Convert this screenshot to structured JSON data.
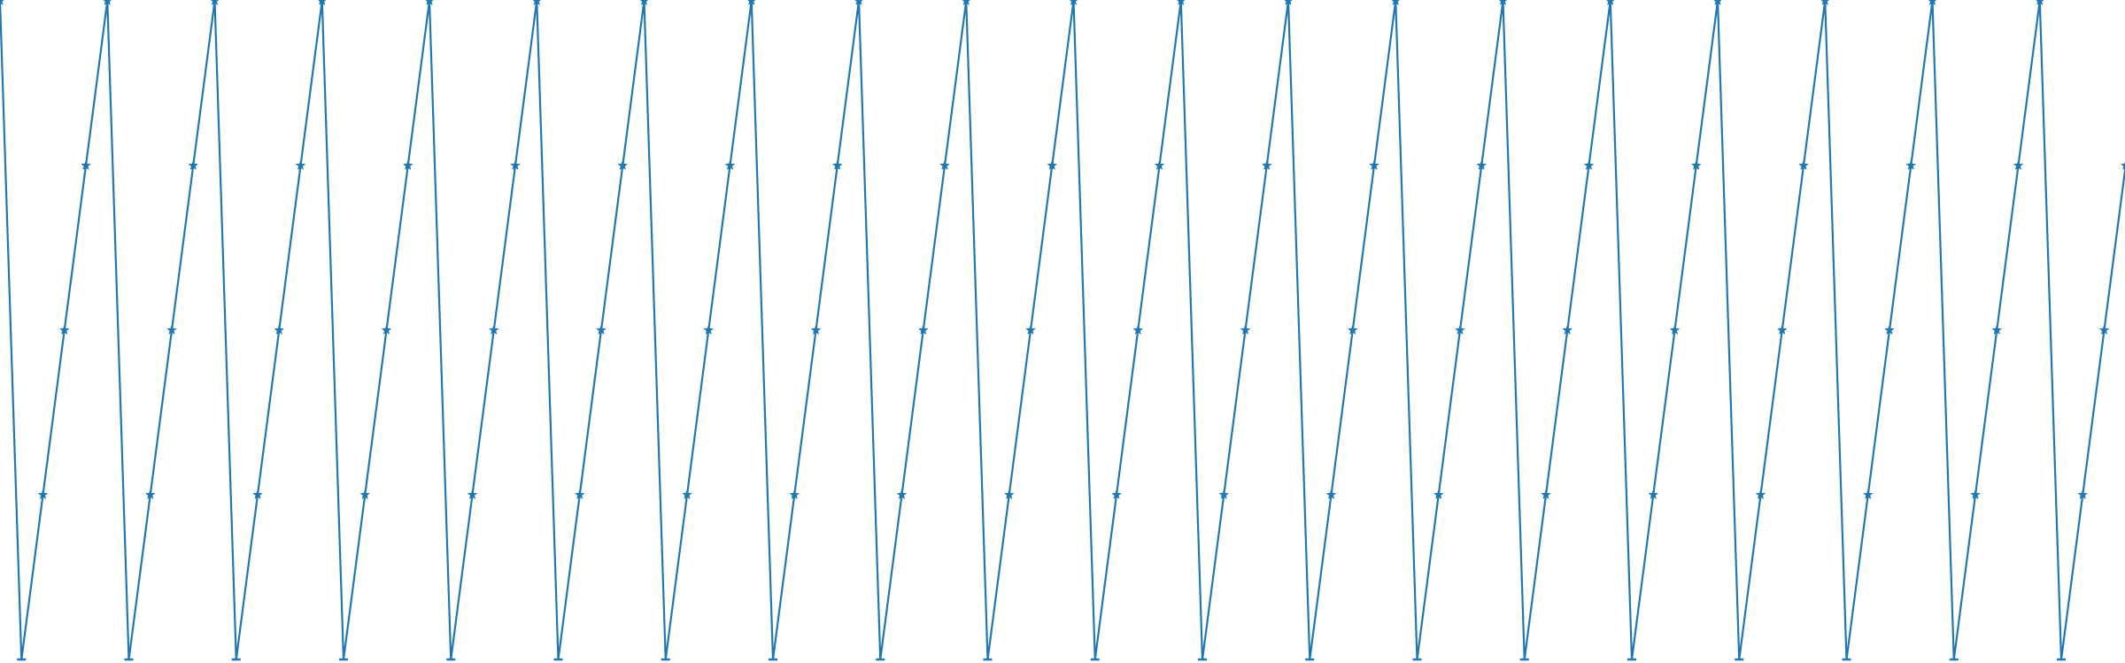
{
  "chart_data": {
    "type": "line",
    "title": "",
    "xlabel": "",
    "ylabel": "",
    "grid": false,
    "legend": false,
    "color": "#1f77b4",
    "period": 5,
    "repeat_pattern_y": [
      4,
      0,
      1,
      2,
      3
    ],
    "series": [
      {
        "x": [
          0,
          1,
          2,
          3,
          4,
          5,
          6,
          7,
          8,
          9,
          10,
          11,
          12,
          13,
          14,
          15,
          16,
          17,
          18,
          19,
          20,
          21,
          22,
          23,
          24,
          25,
          26,
          27,
          28,
          29,
          30,
          31,
          32,
          33,
          34,
          35,
          36,
          37,
          38,
          39,
          40,
          41,
          42,
          43,
          44,
          45,
          46,
          47,
          48,
          49,
          50,
          51,
          52,
          53,
          54,
          55,
          56,
          57,
          58,
          59,
          60,
          61,
          62,
          63,
          64,
          65,
          66,
          67,
          68,
          69,
          70,
          71,
          72,
          73,
          74,
          75,
          76,
          77,
          78,
          79,
          80,
          81,
          82,
          83,
          84,
          85,
          86,
          87,
          88,
          89,
          90,
          91,
          92,
          93,
          94,
          95,
          96,
          97,
          98,
          99
        ],
        "y": [
          4,
          0,
          1,
          2,
          3,
          4,
          0,
          1,
          2,
          3,
          4,
          0,
          1,
          2,
          3,
          4,
          0,
          1,
          2,
          3,
          4,
          0,
          1,
          2,
          3,
          4,
          0,
          1,
          2,
          3,
          4,
          0,
          1,
          2,
          3,
          4,
          0,
          1,
          2,
          3,
          4,
          0,
          1,
          2,
          3,
          4,
          0,
          1,
          2,
          3,
          4,
          0,
          1,
          2,
          3,
          4,
          0,
          1,
          2,
          3,
          4,
          0,
          1,
          2,
          3,
          4,
          0,
          1,
          2,
          3,
          4,
          0,
          1,
          2,
          3,
          4,
          0,
          1,
          2,
          3,
          4,
          0,
          1,
          2,
          3,
          4,
          0,
          1,
          2,
          3,
          4,
          0,
          1,
          2,
          3,
          4,
          0,
          1,
          2,
          3
        ]
      }
    ]
  }
}
